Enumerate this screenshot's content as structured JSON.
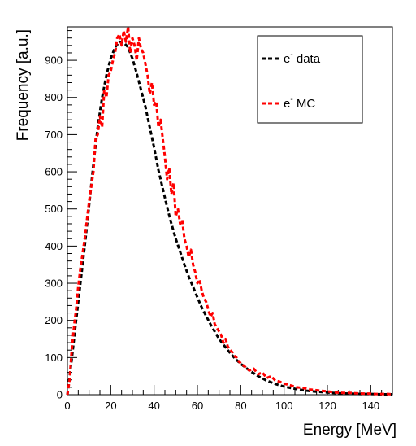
{
  "chart_data": {
    "type": "line",
    "xlabel": "Energy [MeV]",
    "ylabel": "Frequency [a.u.]",
    "xlim": [
      0,
      150
    ],
    "ylim": [
      0,
      990
    ],
    "x_ticks": [
      0,
      20,
      40,
      60,
      80,
      100,
      120,
      140
    ],
    "y_ticks": [
      0,
      100,
      200,
      300,
      400,
      500,
      600,
      700,
      800,
      900
    ],
    "grid": false,
    "legend_position": "top-right",
    "legend": [
      {
        "label_base": "e",
        "label_sup": "-",
        "label_rest": " data",
        "color": "#000000"
      },
      {
        "label_base": "e",
        "label_sup": "-",
        "label_rest": " MC",
        "color": "#ff0000"
      }
    ],
    "series": [
      {
        "name": "e- data",
        "color": "#000000",
        "x": [
          0,
          2,
          4,
          6,
          8,
          10,
          12,
          14,
          16,
          18,
          20,
          22,
          24,
          26,
          28,
          30,
          32,
          34,
          36,
          38,
          40,
          42,
          44,
          46,
          48,
          50,
          52,
          54,
          56,
          58,
          60,
          62,
          64,
          66,
          68,
          70,
          72,
          74,
          76,
          78,
          80,
          84,
          88,
          92,
          96,
          100,
          105,
          110,
          115,
          120,
          125,
          130,
          135,
          140,
          145,
          150
        ],
        "y": [
          0,
          95,
          200,
          300,
          400,
          510,
          620,
          720,
          800,
          860,
          905,
          935,
          950,
          948,
          935,
          905,
          865,
          820,
          775,
          720,
          665,
          605,
          555,
          505,
          460,
          420,
          385,
          350,
          318,
          290,
          262,
          235,
          212,
          190,
          170,
          150,
          135,
          120,
          106,
          94,
          83,
          65,
          50,
          38,
          29,
          22,
          16,
          11,
          8,
          6,
          4,
          3,
          2,
          2,
          1,
          1
        ]
      },
      {
        "name": "e- MC",
        "color": "#ff0000",
        "x": [
          0,
          1,
          2,
          3,
          4,
          5,
          6,
          7,
          8,
          9,
          10,
          11,
          12,
          13,
          14,
          15,
          16,
          17,
          18,
          19,
          20,
          21,
          22,
          23,
          24,
          25,
          26,
          27,
          28,
          29,
          30,
          31,
          32,
          33,
          34,
          35,
          36,
          37,
          38,
          39,
          40,
          41,
          42,
          43,
          44,
          45,
          46,
          47,
          48,
          49,
          50,
          51,
          52,
          53,
          54,
          55,
          56,
          57,
          58,
          59,
          60,
          61,
          62,
          63,
          64,
          65,
          66,
          67,
          68,
          69,
          70,
          71,
          72,
          73,
          74,
          75,
          76,
          77,
          78,
          79,
          80,
          82,
          84,
          86,
          88,
          90,
          92,
          94,
          96,
          98,
          100,
          103,
          106,
          109,
          112,
          115,
          118,
          121,
          124,
          127,
          130,
          133,
          136,
          139,
          142,
          145,
          148,
          150
        ],
        "y": [
          0,
          40,
          120,
          180,
          230,
          290,
          340,
          380,
          420,
          470,
          520,
          560,
          600,
          690,
          700,
          750,
          720,
          820,
          800,
          860,
          870,
          900,
          920,
          960,
          970,
          940,
          980,
          950,
          990,
          920,
          960,
          940,
          900,
          960,
          930,
          920,
          890,
          860,
          810,
          840,
          780,
          790,
          720,
          740,
          690,
          640,
          580,
          610,
          540,
          570,
          480,
          500,
          460,
          470,
          420,
          400,
          370,
          390,
          350,
          330,
          300,
          310,
          280,
          260,
          250,
          230,
          210,
          220,
          190,
          180,
          170,
          160,
          140,
          150,
          130,
          120,
          115,
          105,
          100,
          90,
          85,
          75,
          65,
          70,
          55,
          60,
          45,
          50,
          38,
          35,
          30,
          25,
          20,
          18,
          14,
          12,
          10,
          8,
          6,
          5,
          5,
          4,
          3,
          3,
          2,
          2,
          2,
          1
        ]
      }
    ]
  }
}
